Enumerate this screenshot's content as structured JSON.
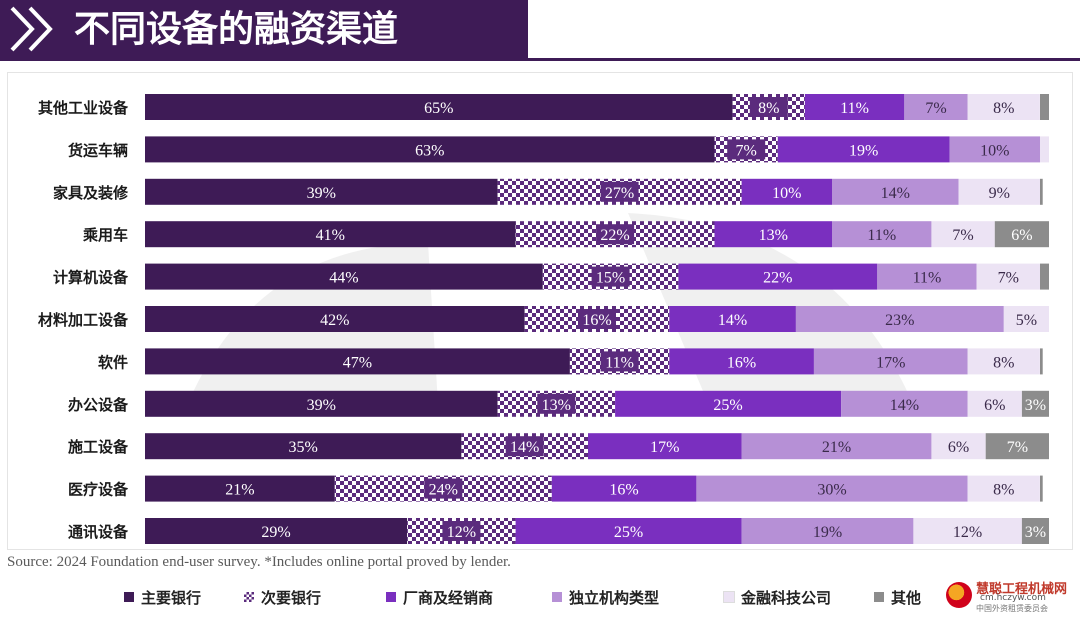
{
  "title": "不同设备的融资渠道",
  "source": "Source: 2024 Foundation end-user survey. *Includes online portal proved by lender.",
  "colors": {
    "title_bg": "#3e1b56",
    "main_bank": "#3e1b56",
    "secondary_bank": "#5b2b7d",
    "manufacturer": "#7a2fbf",
    "independent": "#b690d6",
    "fintech": "#ece3f4",
    "other": "#8c8c8c"
  },
  "chart_data": {
    "type": "bar",
    "orientation": "horizontal",
    "stacked": true,
    "categories": [
      "其他工业设备",
      "货运车辆",
      "家具及装修",
      "乘用车",
      "计算机设备",
      "材料加工设备",
      "软件",
      "办公设备",
      "施工设备",
      "医疗设备",
      "通讯设备"
    ],
    "series": [
      {
        "name": "主要银行",
        "key": "main_bank",
        "pattern": "solid",
        "values": [
          65,
          63,
          39,
          41,
          44,
          42,
          47,
          39,
          35,
          21,
          29
        ]
      },
      {
        "name": "次要银行",
        "key": "secondary_bank",
        "pattern": "checker",
        "values": [
          8,
          7,
          27,
          22,
          15,
          16,
          11,
          13,
          14,
          24,
          12
        ]
      },
      {
        "name": "厂商及经销商",
        "key": "manufacturer",
        "pattern": "solid",
        "values": [
          11,
          19,
          10,
          13,
          22,
          14,
          16,
          25,
          17,
          16,
          25
        ]
      },
      {
        "name": "独立机构类型",
        "key": "independent",
        "pattern": "solid",
        "values": [
          7,
          10,
          14,
          11,
          11,
          23,
          17,
          14,
          21,
          30,
          19
        ]
      },
      {
        "name": "金融科技公司",
        "key": "fintech",
        "pattern": "solid",
        "values": [
          8,
          1,
          9,
          7,
          7,
          5,
          8,
          6,
          6,
          8,
          12
        ]
      },
      {
        "name": "其他",
        "key": "other",
        "pattern": "solid",
        "values": [
          2,
          0,
          0.3,
          6,
          1.2,
          0,
          0.3,
          3,
          7,
          0.3,
          3
        ]
      }
    ],
    "data_labels": [
      [
        "65%",
        "8%",
        "11%",
        "7%",
        "8%",
        ""
      ],
      [
        "63%",
        "7%",
        "19%",
        "10%",
        "",
        ""
      ],
      [
        "39%",
        "27%",
        "10%",
        "14%",
        "9%",
        ""
      ],
      [
        "41%",
        "22%",
        "13%",
        "11%",
        "7%",
        "6%"
      ],
      [
        "44%",
        "15%",
        "22%",
        "11%",
        "7%",
        ""
      ],
      [
        "42%",
        "16%",
        "14%",
        "23%",
        "5%",
        ""
      ],
      [
        "47%",
        "11%",
        "16%",
        "17%",
        "8%",
        ""
      ],
      [
        "39%",
        "13%",
        "25%",
        "14%",
        "6%",
        "3%"
      ],
      [
        "35%",
        "14%",
        "17%",
        "21%",
        "6%",
        "7%"
      ],
      [
        "21%",
        "24%",
        "16%",
        "30%",
        "8%",
        ""
      ],
      [
        "29%",
        "12%",
        "25%",
        "19%",
        "12%",
        "3%"
      ]
    ],
    "legend_position": "bottom"
  },
  "watermark": {
    "brand": "慧聪工程机械网",
    "url": "cm.hczyw.com",
    "org": "中国外资租赁委员会"
  }
}
